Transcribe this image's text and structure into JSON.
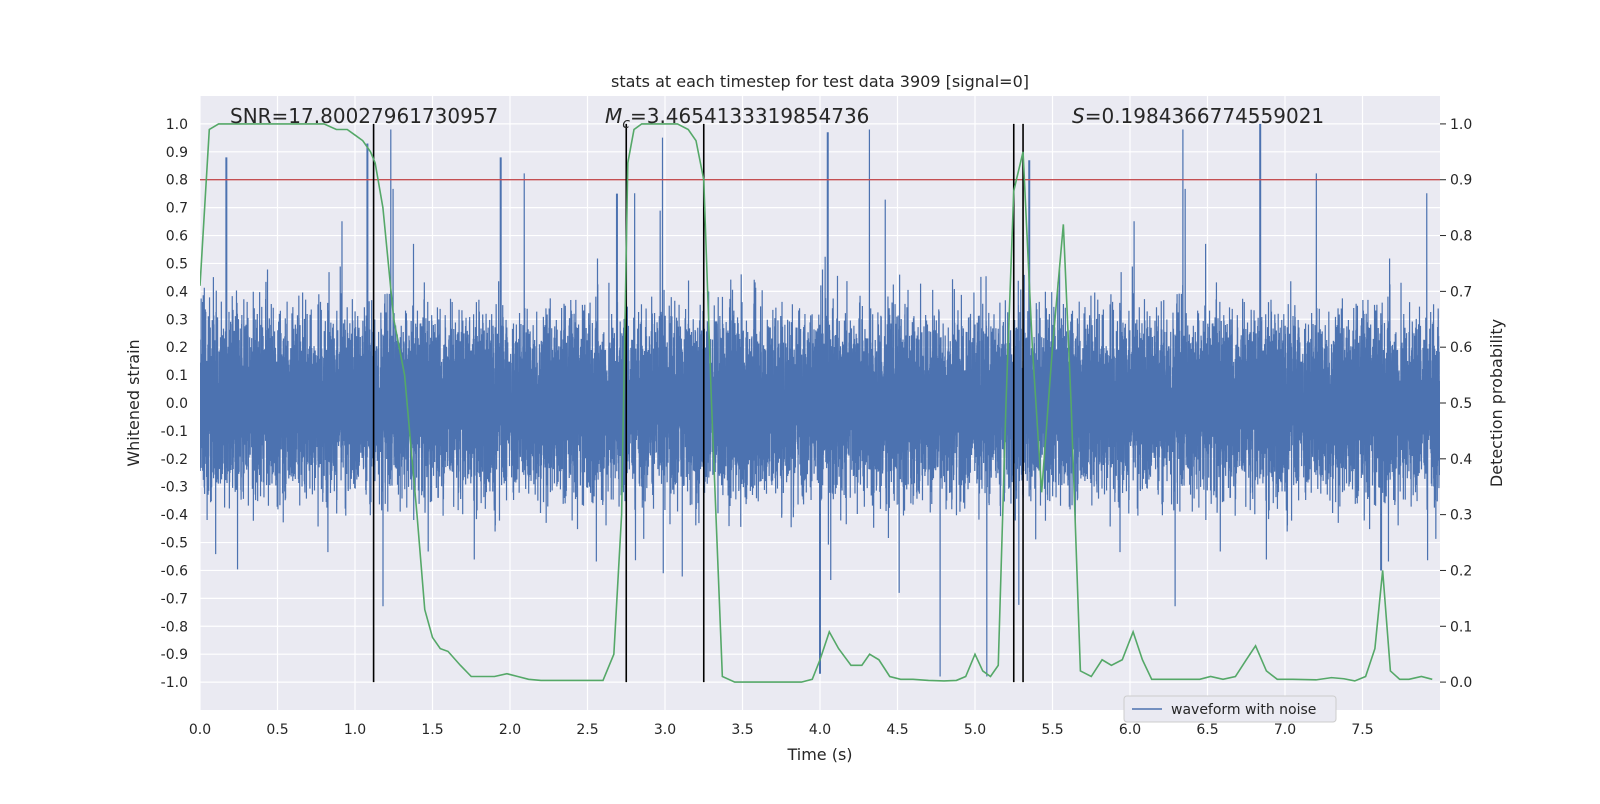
{
  "chart_data": {
    "type": "line",
    "title": "stats at each timestep for test data 3909 [signal=0]",
    "xlabel": "Time (s)",
    "ylabel_left": "Whitened strain",
    "ylabel_right": "Detection probability",
    "xlim": [
      0,
      8
    ],
    "ylim_left": [
      -1.1,
      1.1
    ],
    "ylim_right": [
      -0.05,
      1.05
    ],
    "x_ticks": [
      "0.0",
      "0.5",
      "1.0",
      "1.5",
      "2.0",
      "2.5",
      "3.0",
      "3.5",
      "4.0",
      "4.5",
      "5.0",
      "5.5",
      "6.0",
      "6.5",
      "7.0",
      "7.5"
    ],
    "y_ticks_left": [
      "1.0",
      "0.9",
      "0.8",
      "0.7",
      "0.6",
      "0.5",
      "0.4",
      "0.3",
      "0.2",
      "0.1",
      "0.0",
      "-0.1",
      "-0.2",
      "-0.3",
      "-0.4",
      "-0.5",
      "-0.6",
      "-0.7",
      "-0.8",
      "-0.9",
      "-1.0"
    ],
    "y_ticks_right": [
      "1.0",
      "0.9",
      "0.8",
      "0.7",
      "0.6",
      "0.5",
      "0.4",
      "0.3",
      "0.2",
      "0.1",
      "0.0"
    ],
    "annotations": {
      "snr": "SNR=17.80027961730957",
      "mc_symbol": "M",
      "mc_subscript": "c",
      "mc_value": "=3.4654133319854736",
      "s_symbol": "S",
      "s_value": "=0.1984366774559021"
    },
    "threshold": {
      "value": 0.9,
      "axis": "right",
      "color": "#c44e52"
    },
    "vertical_lines": [
      1.12,
      2.75,
      3.25,
      5.25,
      5.31
    ],
    "vertical_lines_range_right": [
      0.0,
      1.0
    ],
    "series": [
      {
        "name": "waveform with noise",
        "axis": "left",
        "color": "#4c72b0",
        "style": "noise",
        "sample_rate_approx": 2048,
        "spikes": [
          {
            "x": 0.17,
            "y": 0.88
          },
          {
            "x": 1.08,
            "y": 0.93
          },
          {
            "x": 1.94,
            "y": 0.88
          },
          {
            "x": 2.69,
            "y": 0.75
          },
          {
            "x": 4.05,
            "y": 0.97
          },
          {
            "x": 5.35,
            "y": 0.87
          },
          {
            "x": 6.84,
            "y": 1.0
          },
          {
            "x": 7.62,
            "y": -0.6
          },
          {
            "x": 4.0,
            "y": -0.97
          }
        ]
      },
      {
        "name": "",
        "axis": "right",
        "color": "#55a868",
        "x": [
          0.0,
          0.06,
          0.12,
          0.2,
          0.3,
          0.4,
          0.5,
          0.6,
          0.7,
          0.8,
          0.88,
          0.95,
          1.0,
          1.05,
          1.1,
          1.13,
          1.18,
          1.25,
          1.32,
          1.4,
          1.45,
          1.5,
          1.55,
          1.6,
          1.68,
          1.75,
          1.82,
          1.9,
          1.98,
          2.05,
          2.12,
          2.2,
          2.3,
          2.4,
          2.5,
          2.6,
          2.67,
          2.72,
          2.76,
          2.8,
          2.85,
          2.92,
          3.0,
          3.08,
          3.15,
          3.2,
          3.25,
          3.3,
          3.37,
          3.45,
          3.55,
          3.7,
          3.8,
          3.88,
          3.95,
          4.0,
          4.06,
          4.12,
          4.2,
          4.27,
          4.32,
          4.38,
          4.45,
          4.52,
          4.6,
          4.7,
          4.8,
          4.88,
          4.94,
          5.0,
          5.05,
          5.1,
          5.15,
          5.2,
          5.25,
          5.31,
          5.37,
          5.43,
          5.5,
          5.57,
          5.62,
          5.68,
          5.75,
          5.82,
          5.88,
          5.95,
          6.02,
          6.08,
          6.14,
          6.25,
          6.35,
          6.45,
          6.52,
          6.6,
          6.68,
          6.75,
          6.81,
          6.88,
          6.95,
          7.05,
          7.2,
          7.3,
          7.38,
          7.45,
          7.52,
          7.58,
          7.63,
          7.68,
          7.74,
          7.8,
          7.88,
          7.95
        ],
        "y": [
          0.71,
          0.99,
          1.0,
          1.0,
          1.0,
          1.0,
          1.0,
          1.0,
          1.0,
          1.0,
          0.99,
          0.99,
          0.98,
          0.97,
          0.95,
          0.93,
          0.85,
          0.65,
          0.55,
          0.3,
          0.13,
          0.08,
          0.06,
          0.055,
          0.03,
          0.01,
          0.01,
          0.01,
          0.015,
          0.01,
          0.005,
          0.003,
          0.003,
          0.003,
          0.003,
          0.003,
          0.05,
          0.3,
          0.93,
          0.99,
          1.0,
          1.0,
          1.0,
          1.0,
          0.99,
          0.97,
          0.9,
          0.5,
          0.01,
          0.0,
          0.0,
          0.0,
          0.0,
          0.0,
          0.005,
          0.04,
          0.09,
          0.06,
          0.03,
          0.03,
          0.05,
          0.04,
          0.01,
          0.005,
          0.005,
          0.003,
          0.002,
          0.003,
          0.01,
          0.05,
          0.02,
          0.01,
          0.03,
          0.5,
          0.88,
          0.95,
          0.6,
          0.34,
          0.6,
          0.82,
          0.5,
          0.02,
          0.01,
          0.04,
          0.03,
          0.04,
          0.09,
          0.04,
          0.005,
          0.005,
          0.005,
          0.005,
          0.01,
          0.005,
          0.01,
          0.04,
          0.065,
          0.02,
          0.005,
          0.005,
          0.004,
          0.008,
          0.006,
          0.002,
          0.01,
          0.06,
          0.2,
          0.02,
          0.005,
          0.005,
          0.01,
          0.005
        ]
      }
    ],
    "legend": {
      "placement": "bottom-right",
      "entries": [
        "waveform with noise"
      ]
    },
    "grid": true,
    "background": "#eaeaf2"
  }
}
